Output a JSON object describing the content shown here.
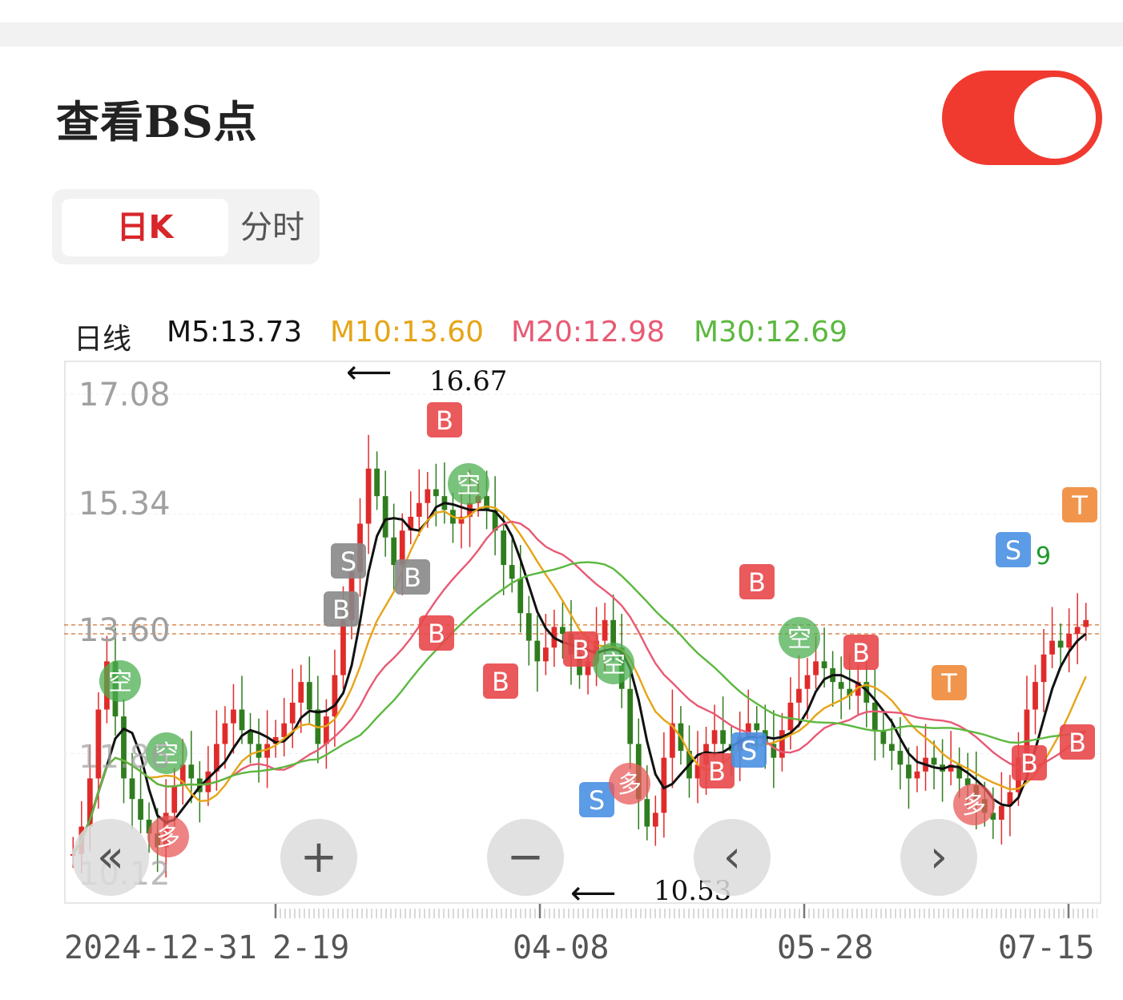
{
  "header": {
    "title": "查看BS点",
    "toggle_on": true,
    "toggle_color": "#f03a2f"
  },
  "tabs": [
    {
      "label": "日K",
      "active": true
    },
    {
      "label": "分时",
      "active": false
    }
  ],
  "ma": {
    "label": "日线",
    "m5": "M5:13.73",
    "m10": "M10:13.60",
    "m20": "M20:12.98",
    "m30": "M30:12.69",
    "colors": {
      "m5": "#111111",
      "m10": "#e6a417",
      "m20": "#e85a74",
      "m30": "#5cb83f"
    }
  },
  "controls": {
    "rewind_icon": "double-chevron-left-icon",
    "zoom_in_icon": "plus-icon",
    "zoom_out_icon": "minus-icon",
    "prev_icon": "chevron-left-icon",
    "next_icon": "chevron-right-icon"
  },
  "annotations": {
    "high": "16.67",
    "low": "10.53"
  },
  "chart_data": {
    "type": "candlestick",
    "y_ticks": [
      "17.08",
      "15.34",
      "13.60",
      "11.86",
      "10.12"
    ],
    "x_ticks": [
      "2024-12-31",
      "2-19",
      "04-08",
      "05-28",
      "07-15"
    ],
    "ylim": [
      10.12,
      17.08
    ],
    "reference_lines": [
      13.73,
      13.6
    ],
    "close": [
      10.4,
      10.8,
      11.5,
      12.5,
      13.2,
      12.4,
      11.5,
      11.2,
      10.9,
      10.7,
      10.5,
      11.0,
      11.4,
      11.7,
      11.5,
      11.3,
      11.6,
      12.0,
      12.3,
      12.5,
      12.2,
      12.0,
      11.8,
      12.0,
      12.1,
      12.3,
      12.6,
      12.9,
      12.5,
      12.0,
      12.4,
      13.0,
      13.8,
      14.5,
      15.2,
      16.0,
      15.6,
      15.0,
      14.6,
      15.1,
      15.3,
      15.5,
      15.7,
      15.6,
      15.4,
      15.2,
      15.3,
      15.5,
      15.6,
      15.4,
      15.1,
      14.6,
      14.4,
      13.9,
      13.5,
      13.2,
      13.4,
      13.7,
      13.6,
      13.3,
      13.0,
      13.2,
      13.5,
      13.8,
      13.4,
      12.8,
      12.0,
      11.2,
      10.8,
      11.0,
      11.8,
      12.3,
      11.9,
      11.5,
      11.7,
      12.0,
      12.2,
      12.0,
      11.9,
      12.1,
      12.3,
      12.2,
      12.0,
      11.8,
      12.2,
      12.6,
      12.8,
      13.0,
      13.2,
      13.1,
      12.9,
      12.8,
      12.7,
      12.9,
      12.6,
      12.2,
      12.0,
      11.9,
      11.7,
      11.5,
      11.6,
      11.8,
      11.7,
      11.6,
      11.7,
      11.5,
      11.4,
      11.2,
      11.0,
      10.9,
      11.1,
      11.3,
      11.8,
      12.5,
      12.9,
      13.3,
      13.5,
      13.4,
      13.6,
      13.7,
      13.8
    ],
    "markers": {
      "B": [
        "B"
      ],
      "S": [
        "S"
      ],
      "T": [
        "T"
      ],
      "kong": [
        "空"
      ],
      "duo": [
        "多"
      ],
      "nine": [
        "9"
      ]
    },
    "series": [
      {
        "name": "M5",
        "color": "#111111"
      },
      {
        "name": "M10",
        "color": "#e6a417"
      },
      {
        "name": "M20",
        "color": "#e85a74"
      },
      {
        "name": "M30",
        "color": "#5cb83f"
      }
    ]
  }
}
